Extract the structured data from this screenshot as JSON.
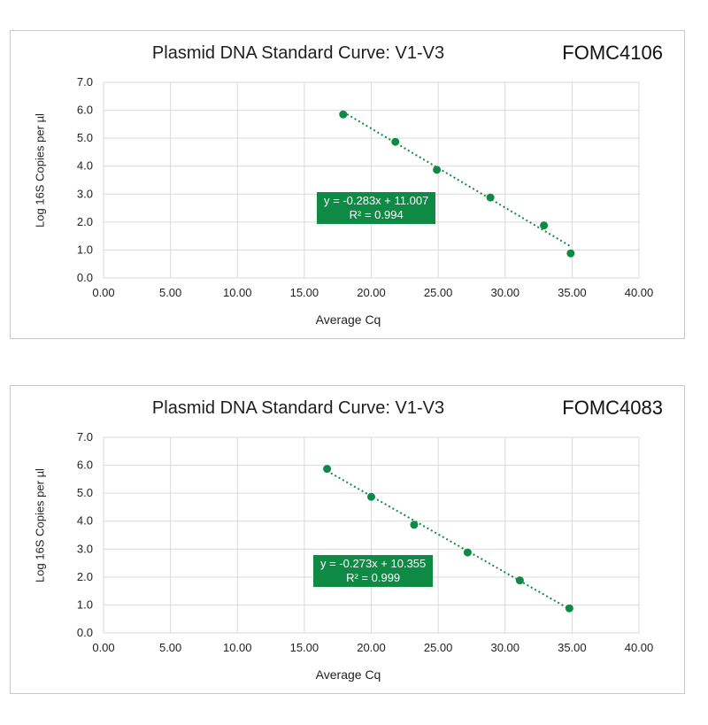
{
  "chart_data": [
    {
      "type": "scatter",
      "title": "Plasmid DNA Standard Curve: V1-V3",
      "sample_id": "FOMC4106",
      "xlabel": "Average Cq",
      "ylabel": "Log 16S Copies per µl",
      "xlim": [
        0,
        40
      ],
      "ylim": [
        0,
        7
      ],
      "x_ticks": [
        "0.00",
        "5.00",
        "10.00",
        "15.00",
        "20.00",
        "25.00",
        "30.00",
        "35.00",
        "40.00"
      ],
      "y_ticks": [
        "0.0",
        "1.0",
        "2.0",
        "3.0",
        "4.0",
        "5.0",
        "6.0",
        "7.0"
      ],
      "grid": true,
      "series": [
        {
          "x": [
            17.9,
            21.8,
            24.9,
            28.9,
            32.9,
            34.9
          ],
          "y": [
            5.85,
            4.87,
            3.87,
            2.88,
            1.88,
            0.88
          ]
        }
      ],
      "trendline": {
        "slope": -0.283,
        "intercept": 11.007,
        "style": "dotted"
      },
      "equation": "y = -0.283x + 11.007",
      "r_squared": "R² = 0.994",
      "color": "#0f8a45"
    },
    {
      "type": "scatter",
      "title": "Plasmid DNA Standard Curve: V1-V3",
      "sample_id": "FOMC4083",
      "xlabel": "Average Cq",
      "ylabel": "Log 16S Copies per µl",
      "xlim": [
        0,
        40
      ],
      "ylim": [
        0,
        7
      ],
      "x_ticks": [
        "0.00",
        "5.00",
        "10.00",
        "15.00",
        "20.00",
        "25.00",
        "30.00",
        "35.00",
        "40.00"
      ],
      "y_ticks": [
        "0.0",
        "1.0",
        "2.0",
        "3.0",
        "4.0",
        "5.0",
        "6.0",
        "7.0"
      ],
      "grid": true,
      "series": [
        {
          "x": [
            16.7,
            20.0,
            23.2,
            27.2,
            31.1,
            34.8
          ],
          "y": [
            5.87,
            4.87,
            3.87,
            2.88,
            1.88,
            0.88
          ]
        }
      ],
      "trendline": {
        "slope": -0.273,
        "intercept": 10.355,
        "style": "dotted"
      },
      "equation": "y = -0.273x + 10.355",
      "r_squared": "R² = 0.999",
      "color": "#0f8a45"
    }
  ]
}
